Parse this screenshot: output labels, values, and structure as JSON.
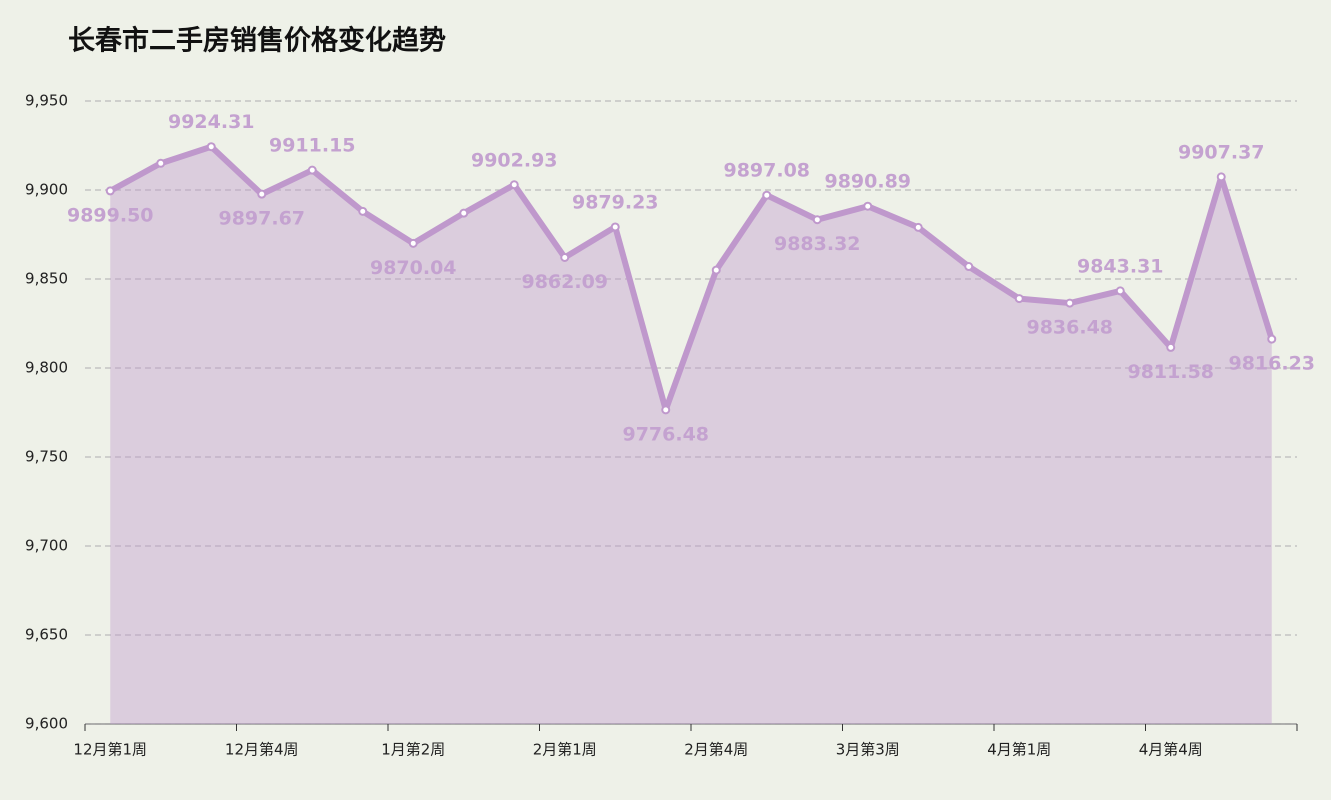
{
  "chart_data": {
    "type": "line",
    "title": "长春市二手房销售价格变化趋势",
    "categories": [
      "12月第1周",
      null,
      null,
      "12月第4周",
      null,
      null,
      "1月第2周",
      null,
      null,
      "2月第1周",
      null,
      null,
      "2月第4周",
      null,
      null,
      "3月第3周",
      null,
      null,
      "4月第1周",
      null,
      null,
      "4月第4周",
      null,
      null
    ],
    "values": [
      9899.5,
      9915,
      9924.31,
      9897.67,
      9911.15,
      9888,
      9870.04,
      9887,
      9902.93,
      9862.09,
      9879.23,
      9776.48,
      9855,
      9897.08,
      9883.32,
      9890.89,
      9879,
      9857,
      9839,
      9836.48,
      9843.31,
      9811.58,
      9907.37,
      9816.23
    ],
    "value_labels": [
      "9899.50",
      null,
      "9924.31",
      "9897.67",
      "9911.15",
      null,
      "9870.04",
      null,
      "9902.93",
      "9862.09",
      "9879.23",
      "9776.48",
      null,
      "9897.08",
      "9883.32",
      "9890.89",
      null,
      null,
      null,
      "9836.48",
      "9843.31",
      "9811.58",
      "9907.37",
      "9816.23"
    ],
    "color": "#bf98cc",
    "ylim": [
      9600,
      9950
    ],
    "yticks": [
      {
        "value": 9600,
        "label": "9,600"
      },
      {
        "value": 9650,
        "label": "9,650"
      },
      {
        "value": 9700,
        "label": "9,700"
      },
      {
        "value": 9750,
        "label": "9,750"
      },
      {
        "value": 9800,
        "label": "9,800"
      },
      {
        "value": 9850,
        "label": "9,850"
      },
      {
        "value": 9900,
        "label": "9,900"
      },
      {
        "value": 9950,
        "label": "9,950"
      }
    ],
    "grid": true,
    "area": true
  }
}
